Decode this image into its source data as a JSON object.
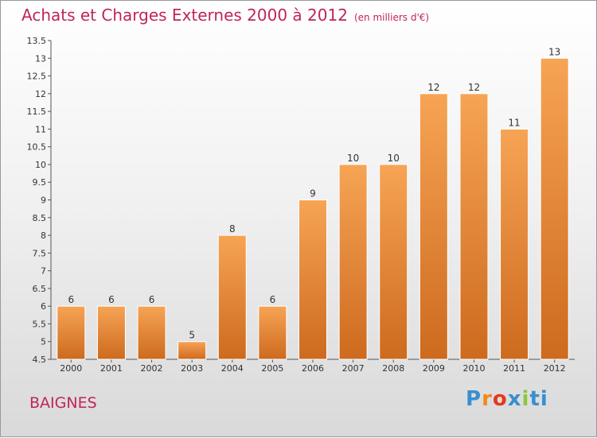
{
  "title": "Achats et Charges Externes 2000 à 2012",
  "subtitle": "(en milliers d'€)",
  "commune": "BAIGNES",
  "logo": {
    "text": "Proxiti"
  },
  "colors": {
    "bar_light": "#f7a455",
    "bar_dark": "#cd6a1e",
    "accent": "#c0245c"
  },
  "chart_data": {
    "type": "bar",
    "title": "Achats et Charges Externes 2000 à 2012",
    "subtitle": "(en milliers d'€)",
    "categories": [
      "2000",
      "2001",
      "2002",
      "2003",
      "2004",
      "2005",
      "2006",
      "2007",
      "2008",
      "2009",
      "2010",
      "2011",
      "2012"
    ],
    "values": [
      6,
      6,
      6,
      5,
      8,
      6,
      9,
      10,
      10,
      12,
      12,
      11,
      13
    ],
    "data_labels": [
      "6",
      "6",
      "6",
      "5",
      "8",
      "6",
      "9",
      "10",
      "10",
      "12",
      "12",
      "11",
      "13"
    ],
    "ylim": [
      4.5,
      13.5
    ],
    "yticks": [
      4.5,
      5,
      5.5,
      6,
      6.5,
      7,
      7.5,
      8,
      8.5,
      9,
      9.5,
      10,
      10.5,
      11,
      11.5,
      12,
      12.5,
      13,
      13.5
    ],
    "ytick_labels": [
      "4.5",
      "5",
      "5.5",
      "6",
      "6.5",
      "7",
      "7.5",
      "8",
      "8.5",
      "9",
      "9.5",
      "10",
      "10.5",
      "11",
      "11.5",
      "12",
      "12.5",
      "13",
      "13.5"
    ],
    "grid": false,
    "legend": "none"
  }
}
